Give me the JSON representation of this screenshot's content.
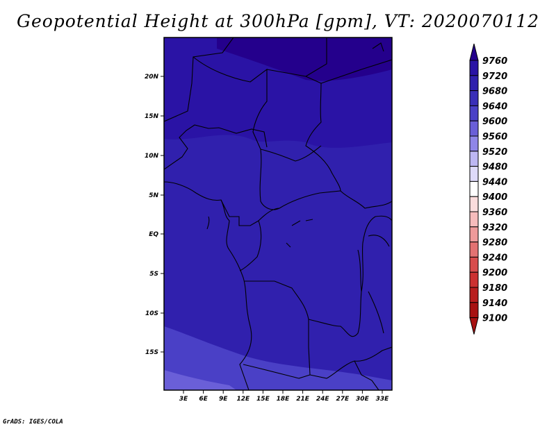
{
  "title": "Geopotential Height at 300hPa [gpm], VT: 2020070112",
  "footer": "GrADS: IGES/COLA",
  "map": {
    "lat_labels": [
      "20N",
      "15N",
      "10N",
      "5N",
      "EQ",
      "5S",
      "10S",
      "15S"
    ],
    "lon_labels": [
      "3E",
      "6E",
      "9E",
      "12E",
      "15E",
      "18E",
      "21E",
      "24E",
      "27E",
      "30E",
      "33E"
    ]
  },
  "colorbar": {
    "levels": [
      "9760",
      "9720",
      "9680",
      "9640",
      "9600",
      "9560",
      "9520",
      "9480",
      "9440",
      "9400",
      "9360",
      "9320",
      "9280",
      "9240",
      "9200",
      "9180",
      "9140",
      "9100"
    ],
    "colors": [
      "#24008c",
      "#2a13a5",
      "#3020ad",
      "#3a2fb8",
      "#4a40c6",
      "#6a5fd8",
      "#8f86e8",
      "#bdb7f3",
      "#dedaf9",
      "#ffffff",
      "#fbdcdc",
      "#f7bcbc",
      "#ee9a9a",
      "#e37272",
      "#d84c4c",
      "#cc3131",
      "#b81e1e",
      "#a81212"
    ]
  }
}
